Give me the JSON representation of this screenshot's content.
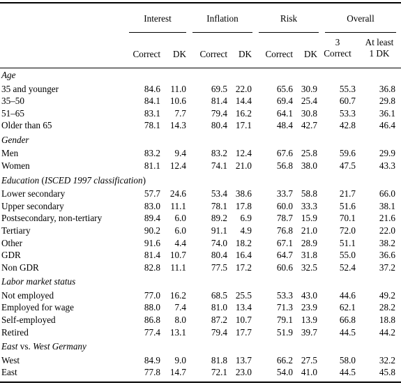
{
  "groups": [
    "Interest",
    "Inflation",
    "Risk",
    "Overall"
  ],
  "subheaders": [
    "Correct",
    "DK",
    "Correct",
    "DK",
    "Correct",
    "DK",
    "3 Correct",
    "At least 1 DK"
  ],
  "subheader_lines": {
    "overall_correct": [
      "3",
      "Correct"
    ],
    "overall_dk": [
      "At least",
      "1 DK"
    ]
  },
  "sections": [
    {
      "title": "Age",
      "rows": [
        {
          "label": "35 and younger",
          "values": [
            "84.6",
            "11.0",
            "69.5",
            "22.0",
            "65.6",
            "30.9",
            "55.3",
            "36.8"
          ]
        },
        {
          "label": "35–50",
          "values": [
            "84.1",
            "10.6",
            "81.4",
            "14.4",
            "69.4",
            "25.4",
            "60.7",
            "29.8"
          ]
        },
        {
          "label": "51–65",
          "values": [
            "83.1",
            "7.7",
            "79.4",
            "16.2",
            "64.1",
            "30.8",
            "53.3",
            "36.1"
          ]
        },
        {
          "label": "Older than 65",
          "values": [
            "78.1",
            "14.3",
            "80.4",
            "17.1",
            "48.4",
            "42.7",
            "42.8",
            "46.4"
          ]
        }
      ]
    },
    {
      "title": "Gender",
      "rows": [
        {
          "label": "Men",
          "values": [
            "83.2",
            "9.4",
            "83.2",
            "12.4",
            "67.6",
            "25.8",
            "59.6",
            "29.9"
          ]
        },
        {
          "label": "Women",
          "values": [
            "81.1",
            "12.4",
            "74.1",
            "21.0",
            "56.8",
            "38.0",
            "47.5",
            "43.3"
          ]
        }
      ]
    },
    {
      "title_parts": [
        "Education",
        " (",
        "ISCED 1997 classification",
        ")"
      ],
      "rows": [
        {
          "label": "Lower secondary",
          "values": [
            "57.7",
            "24.6",
            "53.4",
            "38.6",
            "33.7",
            "58.8",
            "21.7",
            "66.0"
          ]
        },
        {
          "label": "Upper secondary",
          "values": [
            "83.0",
            "11.1",
            "78.1",
            "17.8",
            "60.0",
            "33.3",
            "51.6",
            "38.1"
          ]
        },
        {
          "label": "Postsecondary, non-tertiary",
          "values": [
            "89.4",
            "6.0",
            "89.2",
            "6.9",
            "78.7",
            "15.9",
            "70.1",
            "21.6"
          ]
        },
        {
          "label": "Tertiary",
          "values": [
            "90.2",
            "6.0",
            "91.1",
            "4.9",
            "76.8",
            "21.0",
            "72.0",
            "22.0"
          ]
        },
        {
          "label": "Other",
          "values": [
            "91.6",
            "4.4",
            "74.0",
            "18.2",
            "67.1",
            "28.9",
            "51.1",
            "38.2"
          ]
        },
        {
          "label": "GDR",
          "values": [
            "81.4",
            "10.7",
            "80.4",
            "16.4",
            "64.7",
            "31.8",
            "55.0",
            "36.6"
          ]
        },
        {
          "label": "Non GDR",
          "values": [
            "82.8",
            "11.1",
            "77.5",
            "17.2",
            "60.6",
            "32.5",
            "52.4",
            "37.2"
          ]
        }
      ]
    },
    {
      "title": "Labor market status",
      "rows": [
        {
          "label": "Not employed",
          "values": [
            "77.0",
            "16.2",
            "68.5",
            "25.5",
            "53.3",
            "43.0",
            "44.6",
            "49.2"
          ]
        },
        {
          "label": "Employed for wage",
          "values": [
            "88.0",
            "7.4",
            "81.0",
            "13.4",
            "71.3",
            "23.9",
            "62.1",
            "28.2"
          ]
        },
        {
          "label": "Self-employed",
          "values": [
            "86.8",
            "8.0",
            "87.2",
            "10.7",
            "79.1",
            "13.9",
            "66.8",
            "18.8"
          ]
        },
        {
          "label": "Retired",
          "values": [
            "77.4",
            "13.1",
            "79.4",
            "17.7",
            "51.9",
            "39.7",
            "44.5",
            "44.2"
          ]
        }
      ]
    },
    {
      "title_parts": [
        "East",
        " vs. ",
        "West Germany"
      ],
      "rows": [
        {
          "label": "West",
          "values": [
            "84.9",
            "9.0",
            "81.8",
            "13.7",
            "66.2",
            "27.5",
            "58.0",
            "32.2"
          ]
        },
        {
          "label": "East",
          "values": [
            "77.8",
            "14.7",
            "72.1",
            "23.0",
            "54.0",
            "41.0",
            "44.5",
            "45.8"
          ]
        }
      ]
    }
  ]
}
